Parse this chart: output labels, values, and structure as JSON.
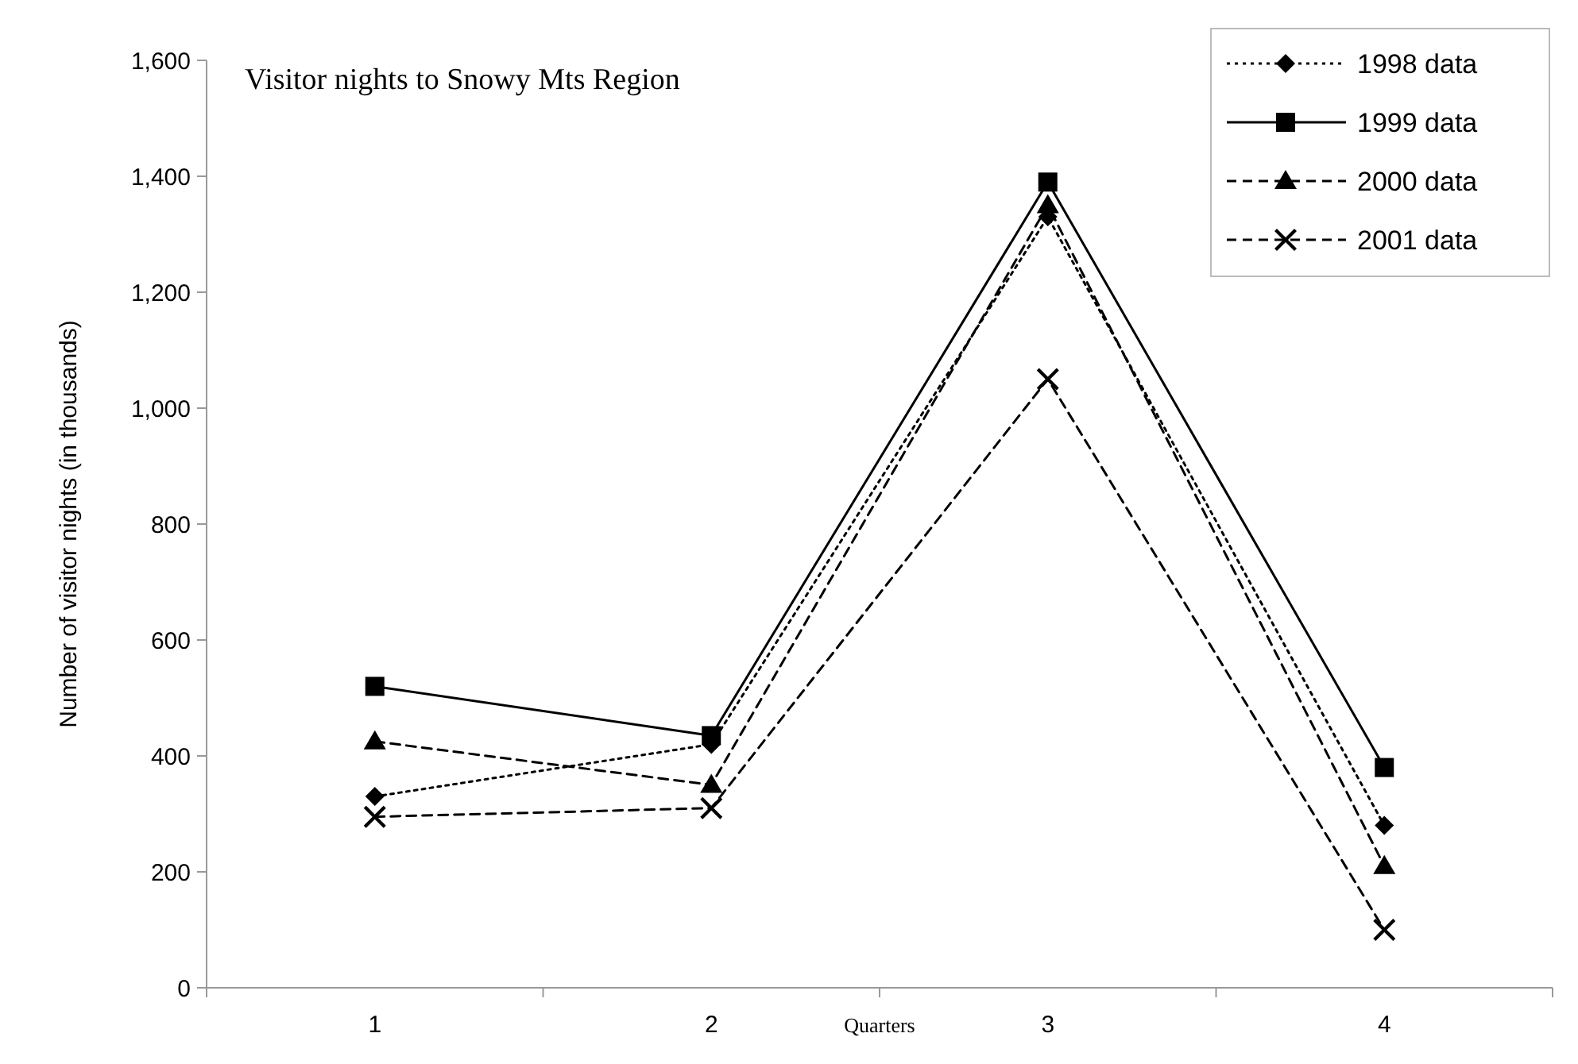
{
  "chart_data": {
    "type": "line",
    "title": "Visitor nights to Snowy Mts Region",
    "xlabel": "Quarters",
    "ylabel": "Number of visitor nights (in thousands)",
    "categories": [
      "1",
      "2",
      "3",
      "4"
    ],
    "series": [
      {
        "name": "1998 data",
        "color": "#000000",
        "values": [
          330,
          420,
          1330,
          280
        ],
        "marker": "diamond",
        "line_style": "dotted"
      },
      {
        "name": "1999 data",
        "color": "#000000",
        "values": [
          520,
          435,
          1390,
          380
        ],
        "marker": "square",
        "line_style": "solid"
      },
      {
        "name": "2000 data",
        "color": "#000000",
        "values": [
          425,
          350,
          1350,
          210
        ],
        "marker": "triangle",
        "line_style": "dashed"
      },
      {
        "name": "2001 data",
        "color": "#000000",
        "values": [
          295,
          310,
          1050,
          100
        ],
        "marker": "cross",
        "line_style": "dashed"
      }
    ],
    "ylim": [
      0,
      1600
    ],
    "yticks": [
      0,
      {
        "value": 200,
        "label": "200"
      },
      {
        "value": 400,
        "label": "400"
      },
      {
        "value": 600,
        "label": "600"
      },
      {
        "value": 800,
        "label": "800"
      },
      {
        "value": 1000,
        "label": "1,000"
      },
      {
        "value": 1200,
        "label": "1,200"
      },
      {
        "value": 1400,
        "label": "1,400"
      },
      {
        "value": 1600,
        "label": "1,600"
      }
    ],
    "grid": false,
    "legend": "top right"
  }
}
